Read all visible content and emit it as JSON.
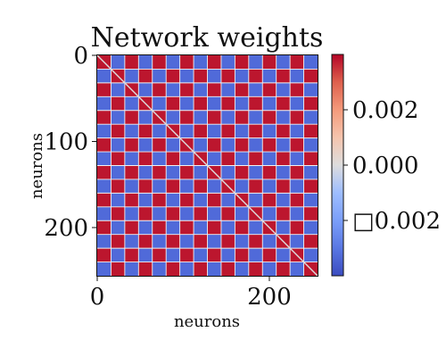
{
  "chart_data": {
    "type": "heatmap",
    "title": "Network weights",
    "xlabel": "neurons",
    "ylabel": "neurons",
    "x_ticks": [
      {
        "value": 0,
        "label": "0"
      },
      {
        "value": 200,
        "label": "200"
      }
    ],
    "y_ticks": [
      {
        "value": 0,
        "label": "0"
      },
      {
        "value": 100,
        "label": "100"
      },
      {
        "value": 200,
        "label": "200"
      }
    ],
    "matrix_size": 256,
    "block_count": 16,
    "block_pattern": "checkerboard",
    "top_left_block": "positive",
    "diagonal_value": 0.0,
    "value_range": [
      -0.004,
      0.004
    ],
    "block_values": {
      "positive": 0.0038,
      "negative": -0.0033
    },
    "colormap": "coolwarm",
    "colorbar": {
      "range": [
        -0.004,
        0.004
      ],
      "ticks": [
        {
          "value": 0.002,
          "label": "0.002"
        },
        {
          "value": 0.0,
          "label": "0.000"
        },
        {
          "value": -0.002,
          "label": "□0.002"
        }
      ]
    },
    "grid": false
  }
}
